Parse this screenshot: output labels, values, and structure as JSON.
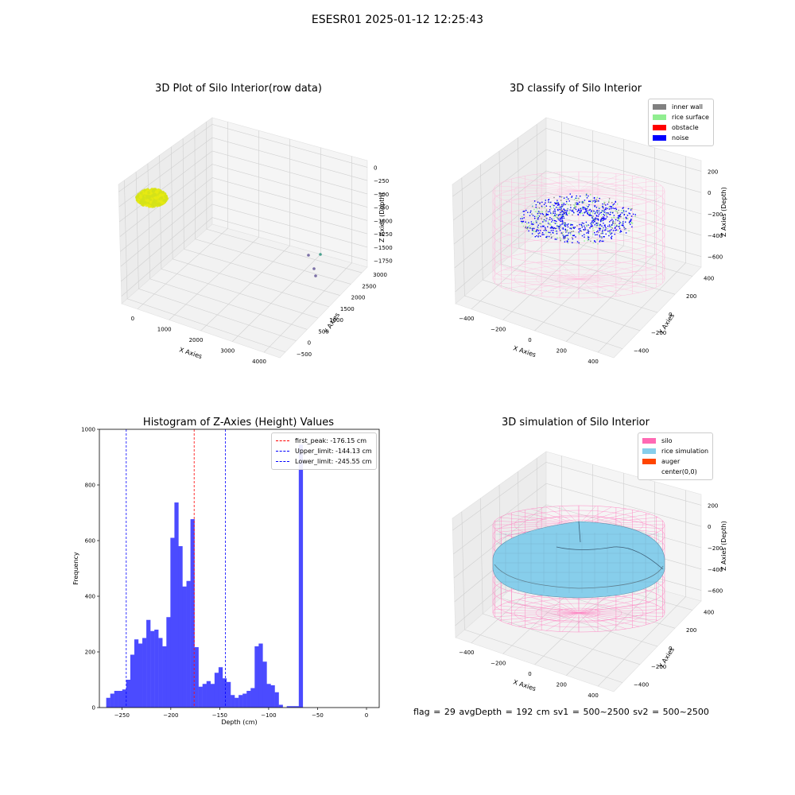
{
  "suptitle": "ESESR01 2025-01-12 12:25:43",
  "footer": "flag = 29  avgDepth = 192 cm  sv1 = 500~2500  sv2 = 500~2500",
  "chart_data": [
    {
      "type": "scatter",
      "title": "3D Plot of Silo Interior(row data)",
      "xlabel": "X Axies",
      "ylabel": "Y Axies",
      "zlabel": "Z Axies (Depth)",
      "x_ticks": [
        "0",
        "1000",
        "2000",
        "3000",
        "4000"
      ],
      "y_ticks": [
        "−500",
        "0",
        "500",
        "1000",
        "1500",
        "2000",
        "2500",
        "3000"
      ],
      "z_ticks": [
        "0",
        "−250",
        "−500",
        "−750",
        "−1000",
        "−1250",
        "−1500",
        "−1750"
      ],
      "colors": {
        "cluster": "#d4e21a",
        "outlier1": "#4aa08e",
        "outlier2": "#7a6fa5"
      }
    },
    {
      "type": "scatter",
      "title": "3D classify of Silo Interior",
      "xlabel": "X Axies",
      "ylabel": "Y Axies",
      "zlabel": "Z Axies (Depth)",
      "x_ticks": [
        "−400",
        "−200",
        "0",
        "200",
        "400"
      ],
      "y_ticks": [
        "−400",
        "−200",
        "0",
        "200",
        "400"
      ],
      "z_ticks": [
        "200",
        "0",
        "−200",
        "−400",
        "−600"
      ],
      "legend": [
        {
          "label": "inner wall",
          "color": "#808080"
        },
        {
          "label": "rice surface",
          "color": "#90ee90"
        },
        {
          "label": "obstacle",
          "color": "#ff0000"
        },
        {
          "label": "noise",
          "color": "#0000ff"
        }
      ],
      "wire_color": "#ffb6d9"
    },
    {
      "type": "bar",
      "title": "Histogram of Z-Axies (Height) Values",
      "xlabel": "Depth (cm)",
      "ylabel": "Frequency",
      "xlim": [
        -273,
        13
      ],
      "ylim": [
        0,
        1000
      ],
      "x_ticks": [
        -250,
        -200,
        -150,
        -100,
        -50,
        0
      ],
      "x_tick_labels": [
        "−250",
        "−200",
        "−150",
        "−100",
        "−50",
        "0"
      ],
      "y_ticks": [
        0,
        200,
        400,
        600,
        800,
        1000
      ],
      "y_tick_labels": [
        "0",
        "200",
        "400",
        "600",
        "800",
        "1000"
      ],
      "bar_color": "#4b4bff",
      "bin_start": -266,
      "bin_width": 4.1,
      "values": [
        35,
        50,
        60,
        60,
        65,
        100,
        190,
        245,
        230,
        250,
        315,
        275,
        280,
        250,
        220,
        325,
        610,
        737,
        580,
        435,
        455,
        677,
        217,
        75,
        85,
        95,
        85,
        125,
        145,
        105,
        92,
        45,
        35,
        45,
        50,
        60,
        70,
        220,
        230,
        165,
        85,
        80,
        55,
        10,
        0,
        5,
        5,
        5,
        945
      ],
      "vlines": [
        {
          "label": "first_peak: -176.15 cm",
          "x": -176.15,
          "color": "#ff0000"
        },
        {
          "label": "Upper_limit: -144.13 cm",
          "x": -144.13,
          "color": "#0000ff"
        },
        {
          "label": "Lower_limit: -245.55 cm",
          "x": -245.55,
          "color": "#0000ff"
        }
      ]
    },
    {
      "type": "area",
      "title": "3D simulation of Silo Interior",
      "xlabel": "X Axies",
      "ylabel": "Y Axies",
      "zlabel": "Z Axies (Depth)",
      "x_ticks": [
        "−400",
        "−200",
        "0",
        "200",
        "400"
      ],
      "y_ticks": [
        "−400",
        "−200",
        "0",
        "200",
        "400"
      ],
      "z_ticks": [
        "200",
        "0",
        "−200",
        "−400",
        "−600"
      ],
      "legend": [
        {
          "label": "silo",
          "color": "#ff69b4"
        },
        {
          "label": "rice simulation",
          "color": "#87ceeb"
        },
        {
          "label": "auger",
          "color": "#ff4500"
        },
        {
          "label": "center(0,0)",
          "color": "#ffffff"
        }
      ],
      "surface_color": "#87ceeb",
      "wire_color": "#ff7fc0"
    }
  ]
}
